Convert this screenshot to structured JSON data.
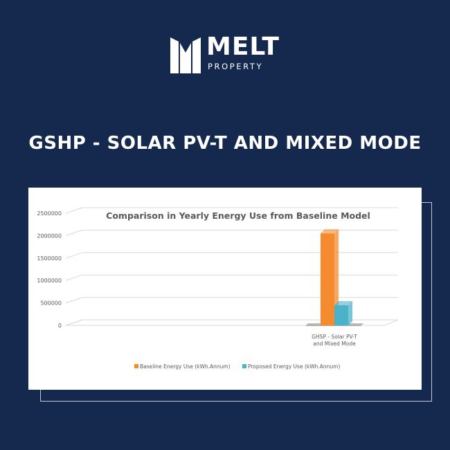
{
  "brand": {
    "name": "MELT",
    "subtitle": "PROPERTY"
  },
  "headline": "GSHP - SOLAR PV-T AND MIXED MODE",
  "colors": {
    "background": "#15284d",
    "baseline": "#f58b2e",
    "proposed": "#4bb3c9"
  },
  "chart_data": {
    "type": "bar",
    "title": "Comparison  in Yearly Energy Use from Baseline Model",
    "categories": [
      "GHSP - Solar PV-T and Mixed Mode"
    ],
    "category_label_lines": [
      "GHSP - Solar PV-T",
      "and Mixed Mode"
    ],
    "series": [
      {
        "name": "Baseline Energy Use (kWh.Annum)",
        "values": [
          2050000
        ],
        "color": "#f58b2e"
      },
      {
        "name": "Proposed Energy Use (kWh.Annum)",
        "values": [
          450000
        ],
        "color": "#4bb3c9"
      }
    ],
    "yticks": [
      "0",
      "500000",
      "1000000",
      "1500000",
      "2000000",
      "2500000"
    ],
    "ylim": [
      0,
      2500000
    ],
    "grid": true,
    "legend": "bottom"
  }
}
